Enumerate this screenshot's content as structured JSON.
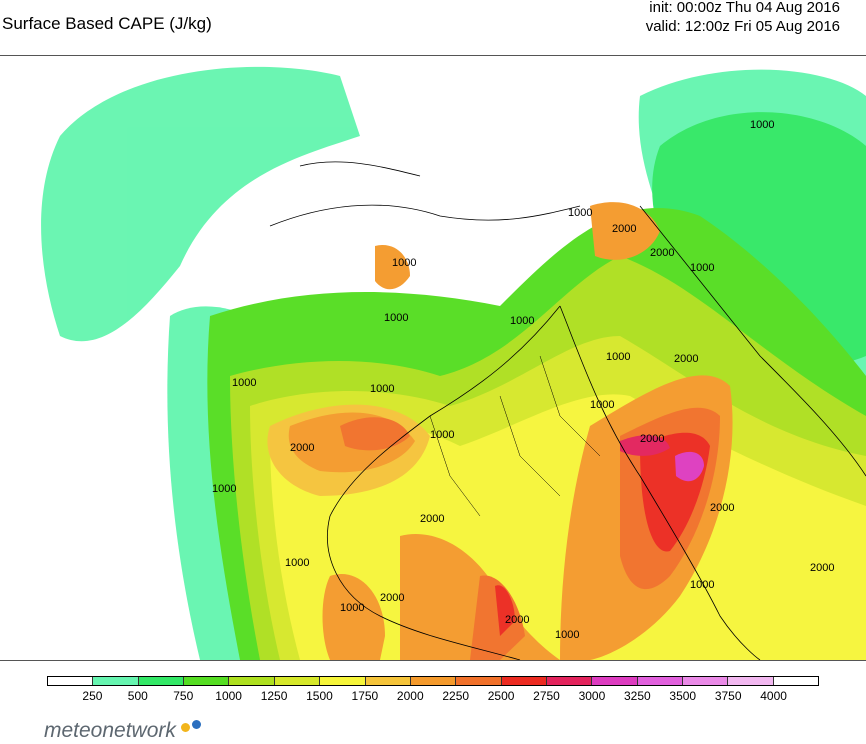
{
  "header": {
    "title": "Surface Based CAPE (J/kg)",
    "init": "init: 00:00z Thu 04 Aug 2016",
    "valid": "valid: 12:00z Fri 05 Aug 2016"
  },
  "legend": {
    "ticks": [
      "250",
      "500",
      "750",
      "1000",
      "1250",
      "1500",
      "1750",
      "2000",
      "2250",
      "2500",
      "2750",
      "3000",
      "3250",
      "3500",
      "3750",
      "4000"
    ],
    "colors": [
      "#ffffff",
      "#66f5b0",
      "#33e866",
      "#55dd22",
      "#aee01f",
      "#d6e82a",
      "#f6f53a",
      "#f5c43a",
      "#f49a2c",
      "#f1712a",
      "#ec2b21",
      "#e3235c",
      "#dd3cc0",
      "#e160dd",
      "#ea8ae7",
      "#f2b8f0",
      "#ffffff"
    ]
  },
  "contour_labels": [
    "1000",
    "2000"
  ],
  "brand": {
    "name": "meteonetwork",
    "dot_colors": [
      "#f2b51c",
      "#2b6fbf"
    ]
  }
}
